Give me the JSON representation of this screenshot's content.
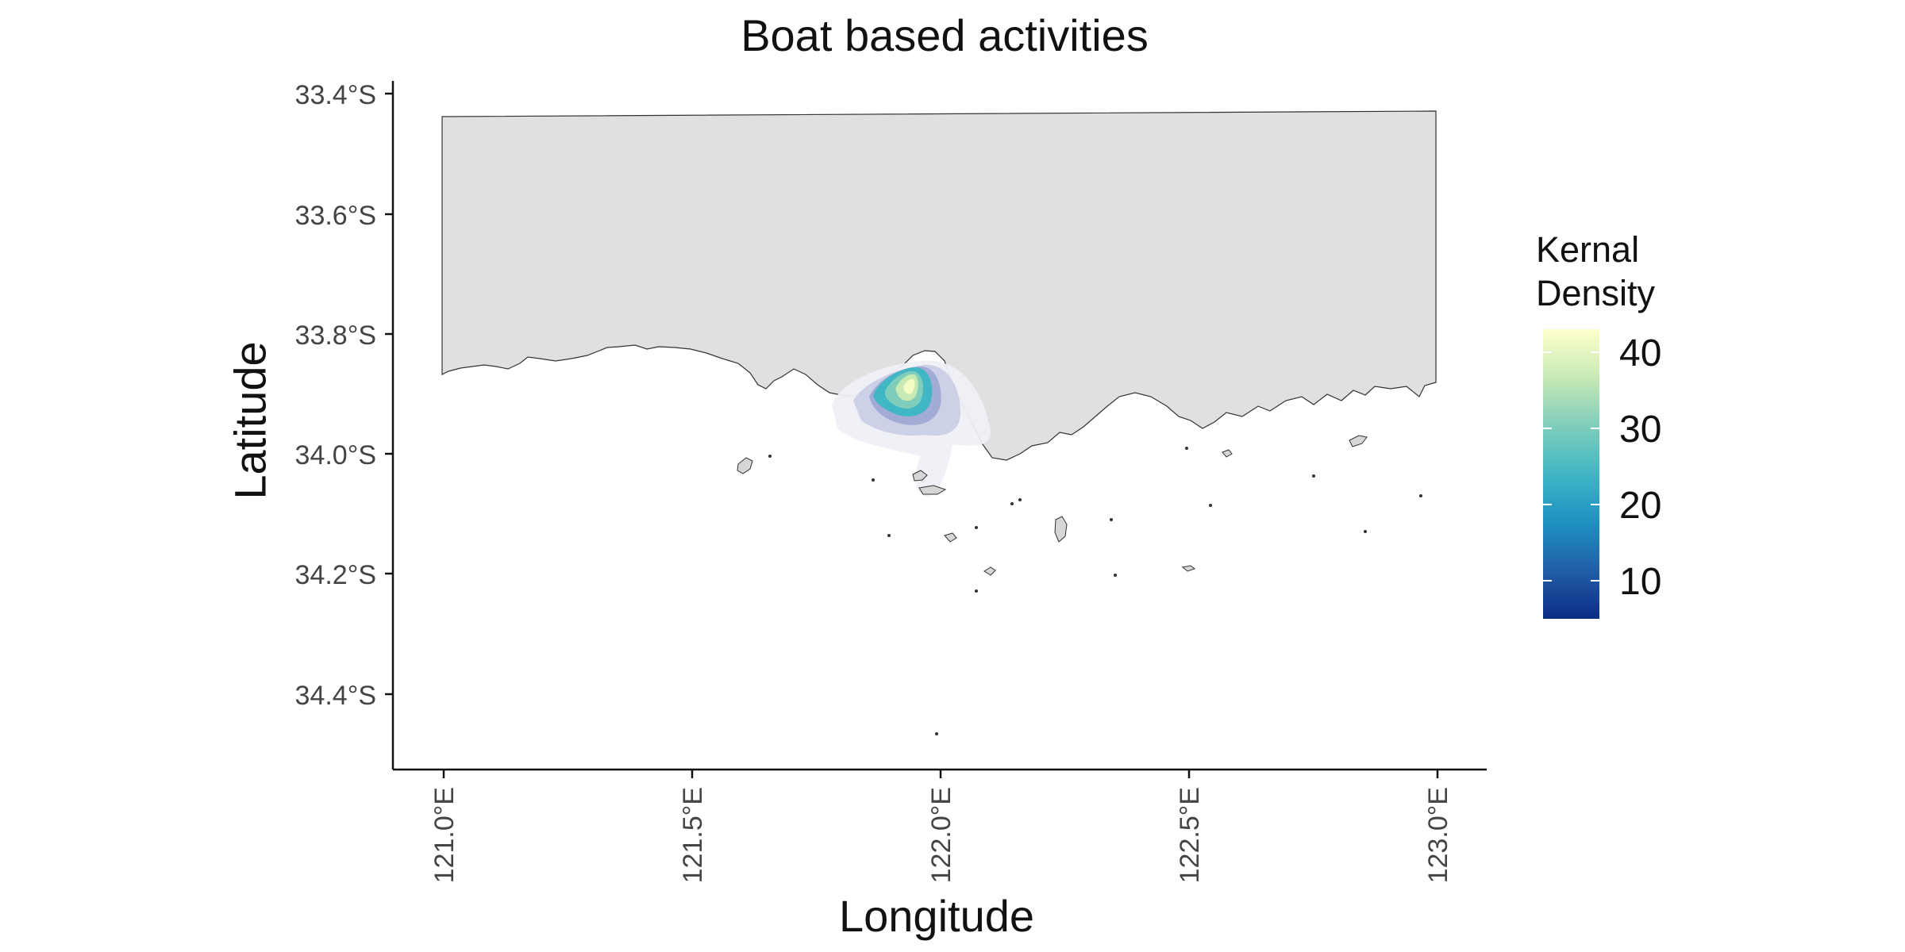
{
  "map": {
    "title": "Boat based activities",
    "xlabel": "Longitude",
    "ylabel": "Latitude",
    "x_ticks": [
      "121.0°E",
      "121.5°E",
      "122.0°E",
      "122.5°E",
      "123.0°E"
    ],
    "y_ticks": [
      "33.4°S",
      "33.6°S",
      "33.8°S",
      "34.0°S",
      "34.2°S",
      "34.4°S"
    ],
    "x_range": [
      120.9,
      123.1
    ],
    "y_range": [
      -34.52,
      -33.38
    ],
    "land_color": "#e0e0e0",
    "coast_color": "#333333"
  },
  "legend": {
    "title": "Kernal\nDensity",
    "ticks": [
      "40",
      "30",
      "20",
      "10"
    ],
    "tick_values": [
      40,
      30,
      20,
      10
    ],
    "range": [
      5,
      43
    ],
    "colors": [
      "#0c2c84",
      "#225ea8",
      "#1d91c0",
      "#41b6c4",
      "#7fcdbb",
      "#c7e9b4",
      "#ffffcc"
    ]
  }
}
